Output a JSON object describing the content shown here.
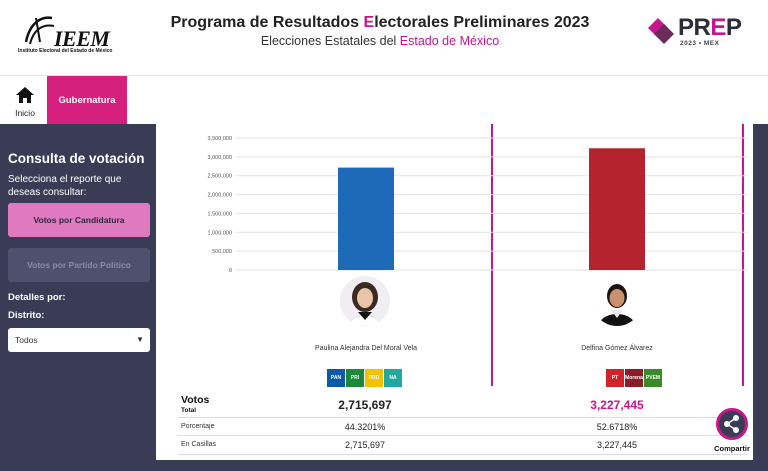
{
  "header": {
    "org_brand": "IEEM",
    "org_tagline": "Instituto Electoral del Estado de México",
    "title_part1": "Programa de Resultados ",
    "title_accent": "E",
    "title_part2": "lectorales Preliminares 2023",
    "subtitle_part1": "Elecciones Estatales del ",
    "subtitle_accent": "Estado de México",
    "prep_word_1": "PR",
    "prep_word_accent": "E",
    "prep_word_2": "P",
    "prep_year": "2023 • MEX"
  },
  "nav": {
    "home_label": "Inicio",
    "tab_label": "Gubernatura"
  },
  "sidebar": {
    "title": "Consulta de votación",
    "description": "Selecciona el reporte que deseas consultar:",
    "button_candidatura": "Votos por Candidatura",
    "button_partido": "Votos por Partido Político",
    "details_label": "Detalles por:",
    "district_label": "Distrito:",
    "district_selected": "Todos"
  },
  "chart_data": {
    "type": "bar",
    "categories": [
      "Paulina Alejandra Del Moral Vela",
      "Delfina Gómez Álvarez"
    ],
    "values": [
      2715697,
      3227445
    ],
    "colors": [
      "#1e6ab8",
      "#b5232f"
    ],
    "ylim": [
      0,
      3500000
    ],
    "yticks": [
      "0",
      "500,000",
      "1,000,000",
      "1,500,000",
      "2,000,000",
      "2,500,000",
      "3,000,000",
      "3,500,000"
    ],
    "grid": true
  },
  "candidates": [
    {
      "name": "Paulina Alejandra Del Moral Vela",
      "parties": [
        "PAN",
        "PRI",
        "PRD",
        "NA"
      ],
      "party_colors": [
        "#0a5aa8",
        "#1a8a3a",
        "#f2c200",
        "#23a8a0"
      ],
      "votos_total": "2,715,697",
      "porcentaje": "44.3201%",
      "en_casillas": "2,715,697"
    },
    {
      "name": "Delfina Gómez Álvarez",
      "parties": [
        "PT",
        "Morena",
        "PVEM"
      ],
      "party_colors": [
        "#d2232a",
        "#8b1c2a",
        "#3a8a2a"
      ],
      "votos_total": "3,227,445",
      "porcentaje": "52.6718%",
      "en_casillas": "3,227,445"
    }
  ],
  "table": {
    "votos_label": "Votos",
    "total_label": "Total",
    "porcentaje_label": "Porcentaje",
    "casillas_label": "En Casillas"
  },
  "share": {
    "label": "Compartir"
  }
}
